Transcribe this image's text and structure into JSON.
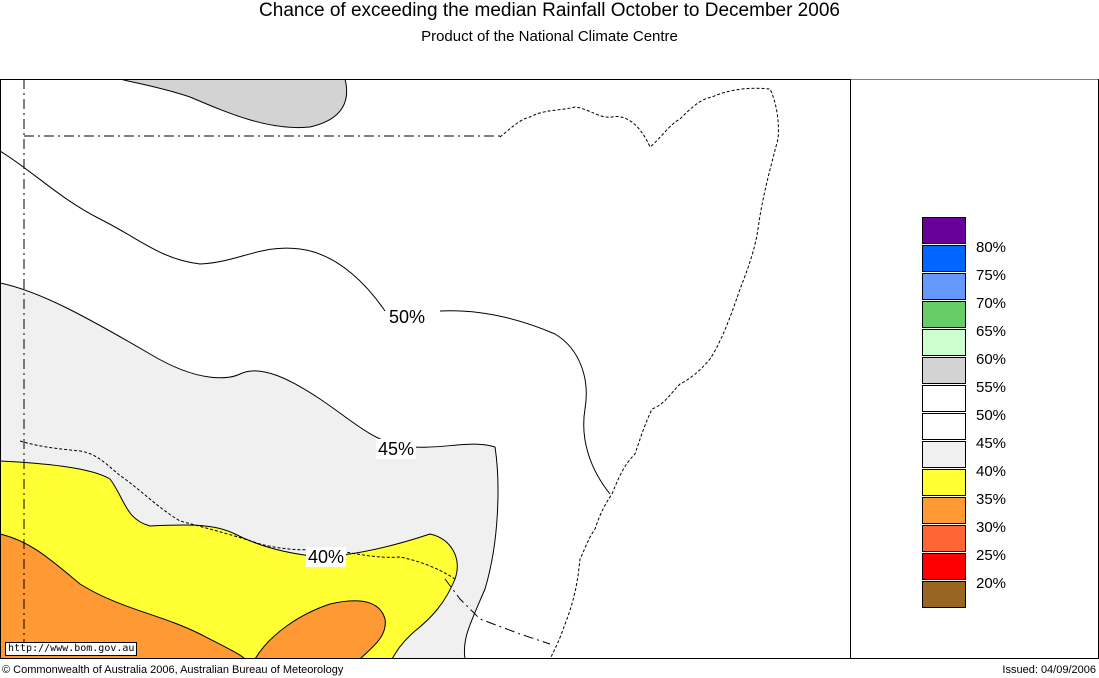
{
  "header": {
    "title": "Chance of exceeding the median Rainfall October to December 2006",
    "subtitle": "Product of the National Climate Centre"
  },
  "map": {
    "contour_labels": [
      "50%",
      "45%",
      "40%"
    ],
    "colors": {
      "band_55_60": "#d3d3d3",
      "band_45_55": "#ffffff",
      "band_40_45": "#f0f0f0",
      "band_35_40": "#ffff33",
      "band_30_35": "#ff9933"
    }
  },
  "legend": {
    "items": [
      {
        "label": "80%",
        "color": "#660099"
      },
      {
        "label": "75%",
        "color": "#0066ff"
      },
      {
        "label": "70%",
        "color": "#6699ff"
      },
      {
        "label": "65%",
        "color": "#66cc66"
      },
      {
        "label": "60%",
        "color": "#ccffcc"
      },
      {
        "label": "55%",
        "color": "#d3d3d3"
      },
      {
        "label": "50%",
        "color": "#ffffff"
      },
      {
        "label": "45%",
        "color": "#ffffff"
      },
      {
        "label": "40%",
        "color": "#f0f0f0"
      },
      {
        "label": "35%",
        "color": "#ffff33"
      },
      {
        "label": "30%",
        "color": "#ff9933"
      },
      {
        "label": "25%",
        "color": "#ff6633"
      },
      {
        "label": "20%",
        "color": "#ff0000"
      },
      {
        "label": "",
        "color": "#996622"
      }
    ]
  },
  "footer": {
    "url": "http://www.bom.gov.au",
    "copyright": "© Commonwealth of Australia 2006, Australian Bureau of Meteorology",
    "issued": "Issued: 04/09/2006"
  }
}
